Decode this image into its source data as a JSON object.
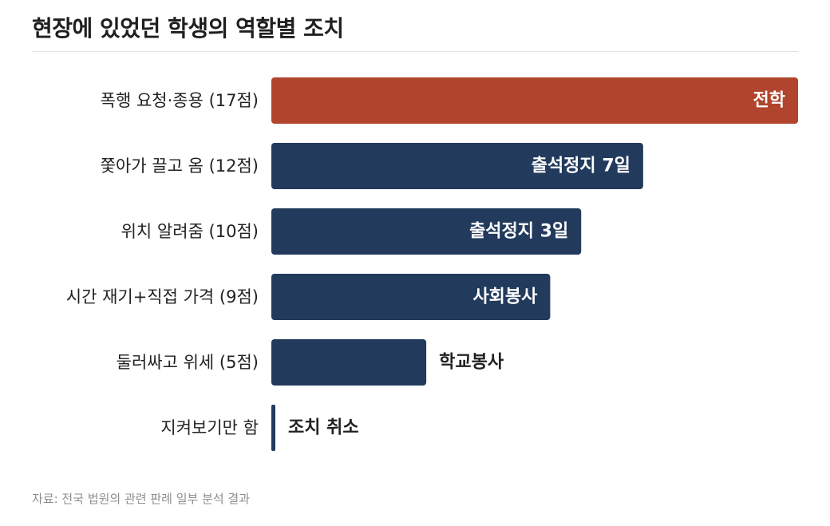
{
  "header": {
    "title": "현장에 있었던 학생의 역할별 조치"
  },
  "footer": {
    "source": "자료: 전국 법원의 관련 판례 일부 분석 결과"
  },
  "colors": {
    "highlight": "#b0442c",
    "bar": "#223a5c",
    "label_inside": "#ffffff",
    "label_outside": "#222222",
    "category_text": "#222222"
  },
  "chart_data": {
    "type": "bar",
    "orientation": "horizontal",
    "title": "현장에 있었던 학생의 역할별 조치",
    "categories": [
      "폭행 요청·종용 (17점)",
      "쫓아가 끌고 옴 (12점)",
      "위치 알려줌 (10점)",
      "시간 재기+직접 가격 (9점)",
      "둘러싸고 위세 (5점)",
      "지켜보기만 함"
    ],
    "values": [
      17,
      12,
      10,
      9,
      5,
      0
    ],
    "bar_labels": [
      "전학",
      "출석정지 7일",
      "출석정지 3일",
      "사회봉사",
      "학교봉사",
      "조치 취소"
    ],
    "highlight_index": 0,
    "xlim": [
      0,
      17
    ],
    "axis_visible": false,
    "grid": false,
    "legend": "none"
  }
}
